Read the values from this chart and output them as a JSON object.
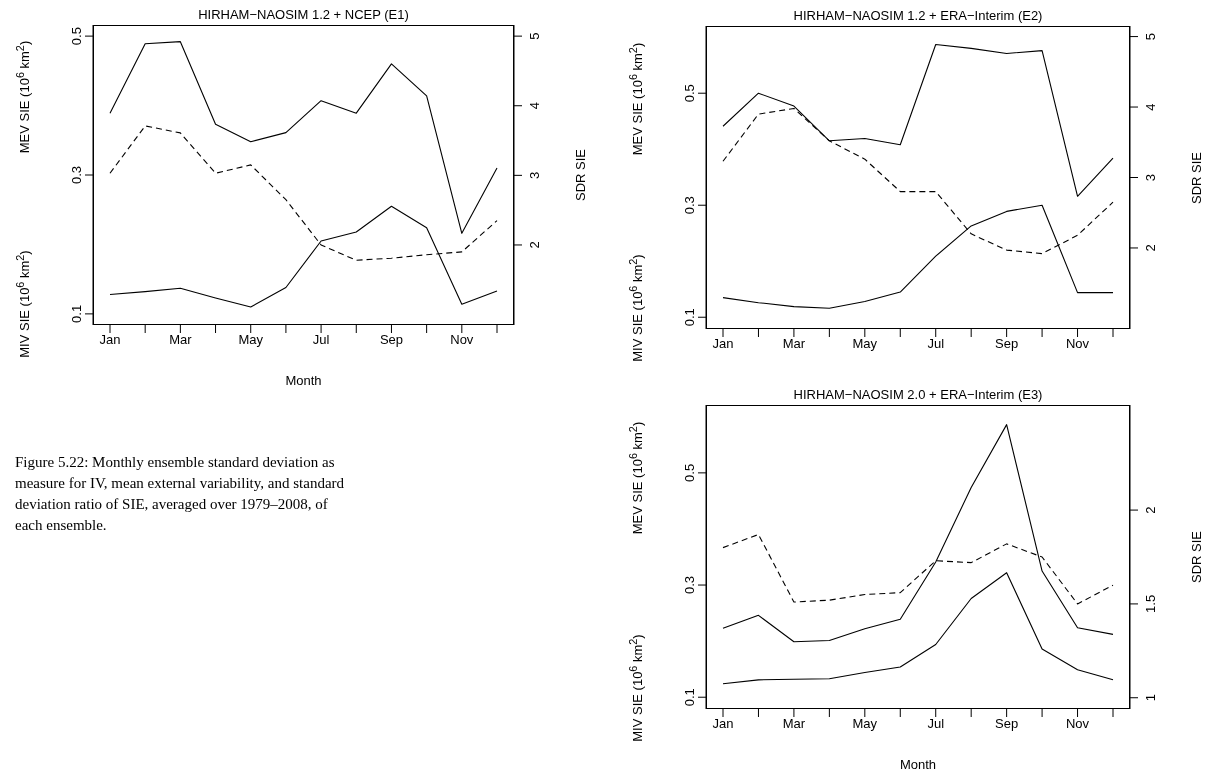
{
  "chart_data": [
    {
      "type": "line",
      "title": "HIRHAM−NAOSIM 1.2 + NCEP (E1)",
      "xlabel": "Month",
      "ylabel": "MEV SIE (10$^{6}$ km$^{2}$)",
      "y2label": "SDR SIE",
      "annotations": [
        "MIV SIE (10$^{6}$ km$^{2}$)"
      ],
      "categories": [
        "Jan",
        null,
        "Mar",
        null,
        "May",
        null,
        "Jul",
        null,
        "Sep",
        null,
        "Nov",
        null
      ],
      "series": [
        {
          "color": "#000000",
          "line_style": "solid",
          "values": [
            0.389,
            0.489,
            0.492,
            0.373,
            0.348,
            0.361,
            0.407,
            0.389,
            0.46,
            0.414,
            0.216,
            0.31
          ]
        },
        {
          "color": "#000000",
          "line_style": "solid",
          "values": [
            0.128,
            0.132,
            0.137,
            0.123,
            0.11,
            0.138,
            0.205,
            0.218,
            0.255,
            0.224,
            0.114,
            0.133
          ]
        },
        {
          "color": "#000000",
          "line_style": "dashed",
          "axis": "y2",
          "values": [
            3.03,
            3.71,
            3.61,
            3.03,
            3.15,
            2.65,
            2.0,
            1.78,
            1.81,
            1.86,
            1.9,
            2.35
          ]
        }
      ],
      "ylim": [
        0.084,
        0.516
      ],
      "yticks": [
        0.1,
        0.3,
        0.5
      ],
      "y2lim": [
        0.85,
        5.16
      ],
      "y2ticks": [
        2,
        3,
        4,
        5
      ]
    },
    {
      "type": "line",
      "title": "HIRHAM−NAOSIM 1.2 + ERA−Interim (E2)",
      "ylabel": "MEV SIE (10$^{6}$ km$^{2}$)",
      "y2label": "SDR SIE",
      "annotations": [
        "MIV SIE (10$^{6}$ km$^{2}$)"
      ],
      "categories": [
        "Jan",
        null,
        "Mar",
        null,
        "May",
        null,
        "Jul",
        null,
        "Sep",
        null,
        "Nov",
        null
      ],
      "series": [
        {
          "color": "#000000",
          "line_style": "solid",
          "values": [
            0.441,
            0.5,
            0.477,
            0.415,
            0.419,
            0.408,
            0.587,
            0.58,
            0.571,
            0.576,
            0.316,
            0.384
          ]
        },
        {
          "color": "#000000",
          "line_style": "solid",
          "values": [
            0.135,
            0.126,
            0.119,
            0.116,
            0.128,
            0.145,
            0.209,
            0.263,
            0.289,
            0.3,
            0.144,
            0.144
          ]
        },
        {
          "color": "#000000",
          "line_style": "dashed",
          "axis": "y2",
          "values": [
            3.23,
            3.9,
            3.98,
            3.52,
            3.26,
            2.8,
            2.8,
            2.2,
            1.97,
            1.92,
            2.18,
            2.65
          ]
        }
      ],
      "ylim": [
        0.079,
        0.62
      ],
      "yticks": [
        0.1,
        0.3,
        0.5
      ],
      "y2lim": [
        0.85,
        5.15
      ],
      "y2ticks": [
        2,
        3,
        4,
        5
      ]
    },
    {
      "type": "line",
      "title": "HIRHAM−NAOSIM 2.0 + ERA−Interim (E3)",
      "xlabel": "Month",
      "ylabel": "MEV SIE (10$^{6}$ km$^{2}$)",
      "y2label": "SDR SIE",
      "annotations": [
        "MIV SIE (10$^{6}$ km$^{2}$)"
      ],
      "categories": [
        "Jan",
        null,
        "Mar",
        null,
        "May",
        null,
        "Jul",
        null,
        "Sep",
        null,
        "Nov",
        null
      ],
      "series": [
        {
          "color": "#000000",
          "line_style": "solid",
          "values": [
            0.223,
            0.246,
            0.199,
            0.201,
            0.222,
            0.239,
            0.341,
            0.474,
            0.586,
            0.325,
            0.224,
            0.212
          ]
        },
        {
          "color": "#000000",
          "line_style": "solid",
          "values": [
            0.124,
            0.131,
            0.132,
            0.133,
            0.144,
            0.154,
            0.194,
            0.276,
            0.322,
            0.186,
            0.149,
            0.131
          ]
        },
        {
          "color": "#000000",
          "line_style": "dashed",
          "axis": "y2",
          "values": [
            1.8,
            1.87,
            1.51,
            1.52,
            1.55,
            1.56,
            1.73,
            1.72,
            1.82,
            1.75,
            1.5,
            1.6
          ]
        }
      ],
      "ylim": [
        0.079,
        0.621
      ],
      "yticks": [
        0.1,
        0.3,
        0.5
      ],
      "y2lim": [
        0.94,
        2.56
      ],
      "y2ticks": [
        1,
        1.5,
        2
      ]
    },
    {
      "type": "other",
      "annotations": [
        "Figure 5.22: Monthly ensemble standard deviation as measure for IV, mean external variability, and standard deviation ratio of SIE, averaged over 1979–2008, of each ensemble."
      ]
    }
  ]
}
